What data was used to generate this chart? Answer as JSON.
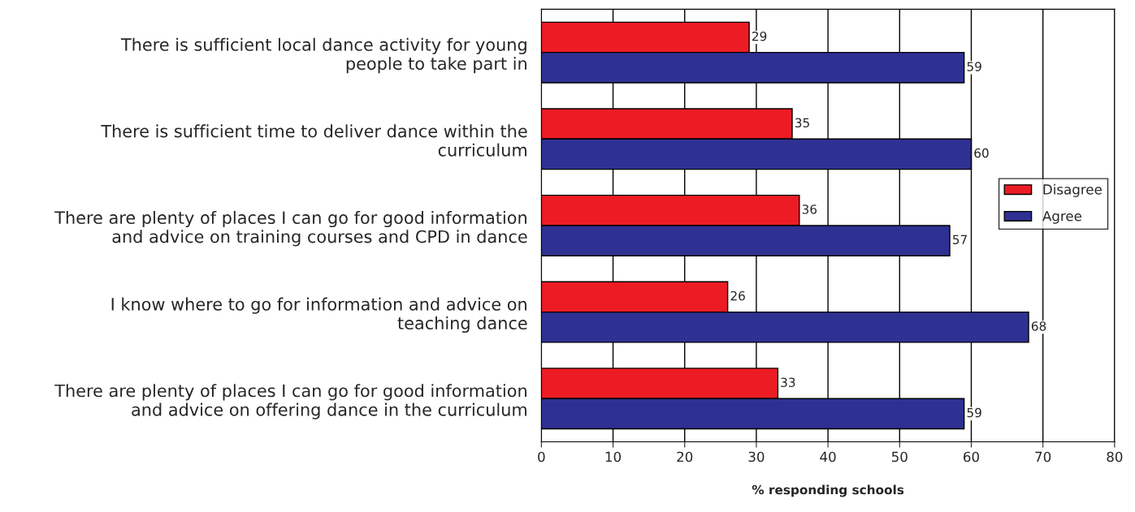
{
  "chart_data": {
    "type": "bar",
    "orientation": "horizontal",
    "xlabel": "% responding schools",
    "categories": [
      "There is sufficient local dance activity for young\npeople to take part in",
      "There is sufficient time to deliver dance within the\ncurriculum",
      "There are plenty of places I can go for good information\nand advice on training courses and CPD in dance",
      "I know where to go for information and advice on\nteaching dance",
      "There are plenty of places I can go for good information\nand advice on offering dance in the curriculum"
    ],
    "series": [
      {
        "name": "Disagree",
        "color": "#ed1c24",
        "values": [
          29,
          35,
          36,
          26,
          33
        ]
      },
      {
        "name": "Agree",
        "color": "#2e3192",
        "values": [
          59,
          60,
          57,
          68,
          59
        ]
      }
    ],
    "xlim": [
      0,
      80
    ],
    "xticks": [
      0,
      10,
      20,
      30,
      40,
      50,
      60,
      70,
      80
    ],
    "grid": "x",
    "legend": "right",
    "data_labels": true
  }
}
